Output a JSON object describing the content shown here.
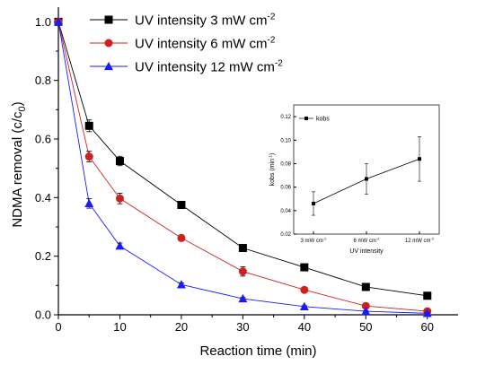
{
  "chart_data": [
    {
      "type": "line",
      "x": [
        0,
        5,
        10,
        20,
        30,
        40,
        50,
        60
      ],
      "series": [
        {
          "name": "UV intensity 3 mW cm⁻²",
          "marker": "square",
          "color": "#000000",
          "values": [
            1.0,
            0.645,
            0.525,
            0.375,
            0.228,
            0.162,
            0.095,
            0.065
          ],
          "error": [
            0.0,
            0.02,
            0.016,
            0.012,
            0.01,
            0.008,
            0.008,
            0.006
          ]
        },
        {
          "name": "UV intensity 6 mW cm⁻²",
          "marker": "circle",
          "color": "#d0201c",
          "values": [
            1.0,
            0.54,
            0.397,
            0.262,
            0.148,
            0.085,
            0.03,
            0.012
          ],
          "error": [
            0.0,
            0.018,
            0.018,
            0.01,
            0.016,
            0.008,
            0.006,
            0.004
          ]
        },
        {
          "name": "UV intensity 12 mW cm⁻²",
          "marker": "triangle",
          "color": "#1a1aff",
          "values": [
            1.0,
            0.38,
            0.235,
            0.103,
            0.055,
            0.028,
            0.012,
            0.005
          ],
          "error": [
            0.0,
            0.016,
            0.01,
            0.006,
            0.004,
            0.003,
            0.002,
            0.002
          ]
        }
      ],
      "xlabel": "Reaction time (min)",
      "ylabel": "NDMA removal (c/c",
      "ylabel_subscript": "0",
      "ylabel_close": ")",
      "xlim": [
        0,
        65
      ],
      "ylim": [
        0,
        1.05
      ],
      "xticks": [
        "0",
        "10",
        "20",
        "30",
        "40",
        "50",
        "60"
      ],
      "yticks": [
        "0.0",
        "0.2",
        "0.4",
        "0.6",
        "0.8",
        "1.0"
      ],
      "legend_position": "top-left",
      "grid": false
    },
    {
      "type": "line",
      "categories": [
        "3 mW cm⁻²",
        "6 mW cm⁻²",
        "12 mW cm⁻²"
      ],
      "series": [
        {
          "name": "kobs",
          "marker": "square",
          "color": "#000000",
          "values": [
            0.046,
            0.067,
            0.084
          ],
          "error": [
            0.01,
            0.013,
            0.019
          ]
        }
      ],
      "xlabel": "UV intensity",
      "ylabel": "kobs (min⁻¹)",
      "ylim": [
        0.02,
        0.13
      ],
      "yticks": [
        "0.02",
        "0.04",
        "0.06",
        "0.08",
        "0.10",
        "0.12"
      ],
      "legend_position": "top-left",
      "grid": false
    }
  ]
}
